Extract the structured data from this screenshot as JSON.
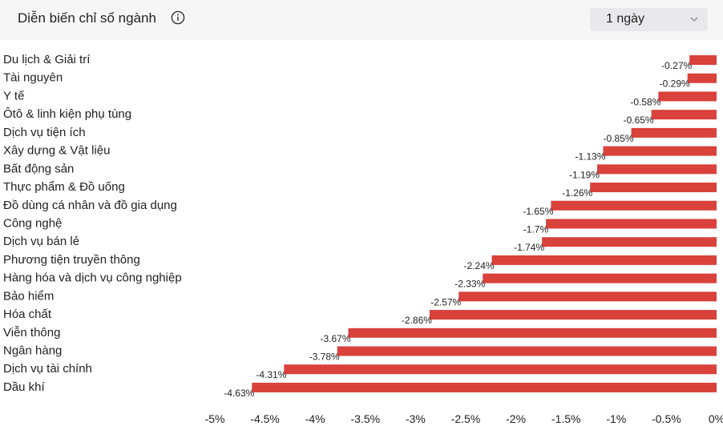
{
  "header": {
    "title": "Diễn biến chỉ số ngành",
    "info_icon": "info-circle-icon",
    "period": {
      "selected": "1 ngày",
      "icon": "chevron-down-icon"
    }
  },
  "colors": {
    "bar": "#d9413b",
    "header_bg": "#f6f6f7",
    "select_bg": "#e9e9eb"
  },
  "chart_data": {
    "type": "bar",
    "orientation": "horizontal",
    "categories": [
      "Du lịch & Giải trí",
      "Tài nguyên",
      "Y tế",
      "Ôtô & linh kiện phụ tùng",
      "Dịch vụ tiện ích",
      "Xây dựng & Vật liệu",
      "Bất động sản",
      "Thực phẩm & Đồ uống",
      "Đồ dùng cá nhân và đồ gia dụng",
      "Công nghệ",
      "Dịch vụ bán lẻ",
      "Phương tiện truyền thông",
      "Hàng hóa và dịch vụ công nghiệp",
      "Bảo hiểm",
      "Hóa chất",
      "Viễn thông",
      "Ngân hàng",
      "Dịch vụ tài chính",
      "Dầu khí"
    ],
    "values": [
      -0.27,
      -0.29,
      -0.58,
      -0.65,
      -0.85,
      -1.13,
      -1.19,
      -1.26,
      -1.65,
      -1.7,
      -1.74,
      -2.24,
      -2.33,
      -2.57,
      -2.86,
      -3.67,
      -3.78,
      -4.31,
      -4.63
    ],
    "value_labels": [
      "-0.27%",
      "-0.29%",
      "-0.58%",
      "-0.65%",
      "-0.85%",
      "-1.13%",
      "-1.19%",
      "-1.26%",
      "-1.65%",
      "-1.7%",
      "-1.74%",
      "-2.24%",
      "-2.33%",
      "-2.57%",
      "-2.86%",
      "-3.67%",
      "-3.78%",
      "-4.31%",
      "-4.63%"
    ],
    "xlim": [
      -5,
      0
    ],
    "xticks": [
      -5,
      -4.5,
      -4,
      -3.5,
      -3,
      -2.5,
      -2,
      -1.5,
      -1,
      -0.5,
      0
    ],
    "xtick_labels": [
      "-5%",
      "-4.5%",
      "-4%",
      "-3.5%",
      "-3%",
      "-2.5%",
      "-2%",
      "-1.5%",
      "-1%",
      "-0.5%",
      "0%"
    ],
    "grid": false,
    "legend": "none"
  }
}
